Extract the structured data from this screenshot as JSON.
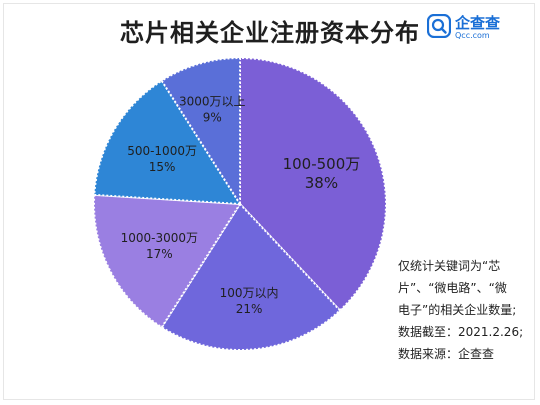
{
  "title": "芯片相关企业注册资本分布",
  "logo": {
    "name_cn": "企查查",
    "name_en": "Qcc.com"
  },
  "note_lines": [
    "仅统计关键词为“芯",
    "片”、“微电路”、“微",
    "电子”的相关企业数量;",
    "数据截至：2021.2.26;",
    "数据来源：企查查"
  ],
  "chart_data": {
    "type": "pie",
    "title": "芯片相关企业注册资本分布",
    "slices": [
      {
        "label": "100-500万",
        "pct_label": "38%",
        "value": 38,
        "color": "#7b5fd6"
      },
      {
        "label": "100万以内",
        "pct_label": "21%",
        "value": 21,
        "color": "#6f67dc"
      },
      {
        "label": "1000-3000万",
        "pct_label": "17%",
        "value": 17,
        "color": "#9a7fe2"
      },
      {
        "label": "500-1000万",
        "pct_label": "15%",
        "value": 15,
        "color": "#2e86d6"
      },
      {
        "label": "3000万以上",
        "pct_label": "9%",
        "value": 9,
        "color": "#5a6fd8"
      }
    ]
  }
}
